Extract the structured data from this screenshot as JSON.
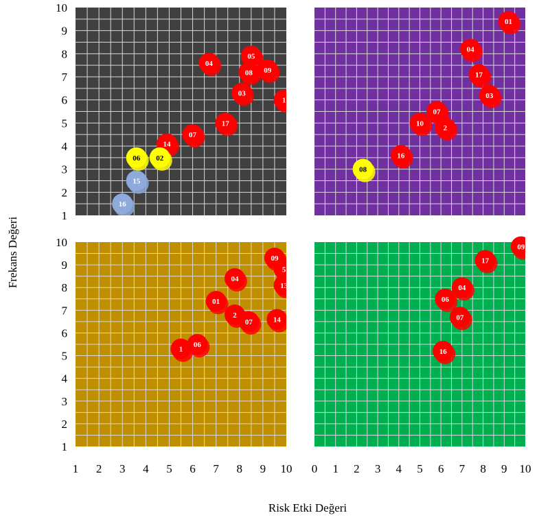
{
  "chart_data": {
    "type": "scatter",
    "xlabel": "Risk Etki Değeri",
    "ylabel": "Frekans Değeri",
    "legend": "none",
    "grid": true,
    "panels": [
      {
        "background": "#404040",
        "xlim": [
          1,
          10
        ],
        "ylim": [
          1,
          10
        ],
        "x_ticks": [
          1,
          2,
          3,
          4,
          5,
          6,
          7,
          8,
          9,
          10
        ],
        "y_ticks": [
          1,
          2,
          3,
          4,
          5,
          6,
          7,
          8,
          9,
          10
        ],
        "points": [
          {
            "label": "04",
            "x": 6.7,
            "y": 7.6,
            "color": "#ff0000"
          },
          {
            "label": "05",
            "x": 8.5,
            "y": 7.9,
            "color": "#ff0000"
          },
          {
            "label": "08",
            "x": 8.4,
            "y": 7.2,
            "color": "#ff0000"
          },
          {
            "label": "09",
            "x": 9.2,
            "y": 7.3,
            "color": "#ff0000"
          },
          {
            "label": "03",
            "x": 8.1,
            "y": 6.3,
            "color": "#ff0000"
          },
          {
            "label": "1",
            "x": 9.9,
            "y": 6.0,
            "color": "#ff0000"
          },
          {
            "label": "17",
            "x": 7.4,
            "y": 5.0,
            "color": "#ff0000"
          },
          {
            "label": "07",
            "x": 6.0,
            "y": 4.5,
            "color": "#ff0000"
          },
          {
            "label": "14",
            "x": 4.9,
            "y": 4.1,
            "color": "#ff0000"
          },
          {
            "label": "06",
            "x": 3.6,
            "y": 3.5,
            "color": "#ffff00"
          },
          {
            "label": "02",
            "x": 4.6,
            "y": 3.5,
            "color": "#ffff00"
          },
          {
            "label": "15",
            "x": 3.6,
            "y": 2.5,
            "color": "#8ea9db"
          },
          {
            "label": "16",
            "x": 3.0,
            "y": 1.5,
            "color": "#8ea9db"
          }
        ]
      },
      {
        "background": "#7030a0",
        "xlim": [
          0,
          10
        ],
        "ylim": [
          1,
          10
        ],
        "x_ticks": [],
        "y_ticks": [],
        "points": [
          {
            "label": "01",
            "x": 9.2,
            "y": 9.4,
            "color": "#ff0000"
          },
          {
            "label": "04",
            "x": 7.4,
            "y": 8.2,
            "color": "#ff0000"
          },
          {
            "label": "17",
            "x": 7.8,
            "y": 7.1,
            "color": "#ff0000"
          },
          {
            "label": "03",
            "x": 8.3,
            "y": 6.2,
            "color": "#ff0000"
          },
          {
            "label": "07",
            "x": 5.8,
            "y": 5.5,
            "color": "#ff0000"
          },
          {
            "label": "10",
            "x": 5.0,
            "y": 5.0,
            "color": "#ff0000"
          },
          {
            "label": "2",
            "x": 6.2,
            "y": 4.8,
            "color": "#ff0000"
          },
          {
            "label": "16",
            "x": 4.1,
            "y": 3.6,
            "color": "#ff0000"
          },
          {
            "label": "08",
            "x": 2.3,
            "y": 3.0,
            "color": "#ffff00"
          }
        ]
      },
      {
        "background": "#bf8f00",
        "xlim": [
          1,
          10
        ],
        "ylim": [
          1,
          10
        ],
        "x_ticks": [
          1,
          2,
          3,
          4,
          5,
          6,
          7,
          8,
          9,
          10
        ],
        "y_ticks": [
          1,
          2,
          3,
          4,
          5,
          6,
          7,
          8,
          9,
          10
        ],
        "points": [
          {
            "label": "09",
            "x": 9.5,
            "y": 9.3,
            "color": "#ff0000"
          },
          {
            "label": "5",
            "x": 9.9,
            "y": 8.8,
            "color": "#ff0000"
          },
          {
            "label": "04",
            "x": 7.8,
            "y": 8.4,
            "color": "#ff0000"
          },
          {
            "label": "13",
            "x": 9.9,
            "y": 8.1,
            "color": "#ff0000"
          },
          {
            "label": "01",
            "x": 7.0,
            "y": 7.4,
            "color": "#ff0000"
          },
          {
            "label": "2",
            "x": 7.8,
            "y": 6.8,
            "color": "#ff0000"
          },
          {
            "label": "07",
            "x": 8.4,
            "y": 6.5,
            "color": "#ff0000"
          },
          {
            "label": "14",
            "x": 9.6,
            "y": 6.6,
            "color": "#ff0000"
          },
          {
            "label": "06",
            "x": 6.2,
            "y": 5.5,
            "color": "#ff0000"
          },
          {
            "label": "1",
            "x": 5.5,
            "y": 5.3,
            "color": "#ff0000"
          }
        ]
      },
      {
        "background": "#00b050",
        "xlim": [
          0,
          10
        ],
        "ylim": [
          1,
          10
        ],
        "x_ticks": [
          0,
          1,
          2,
          3,
          4,
          5,
          6,
          7,
          8,
          9,
          10
        ],
        "y_ticks": [],
        "points": [
          {
            "label": "09",
            "x": 9.8,
            "y": 9.8,
            "color": "#ff0000"
          },
          {
            "label": "17",
            "x": 8.1,
            "y": 9.2,
            "color": "#ff0000"
          },
          {
            "label": "04",
            "x": 7.0,
            "y": 8.0,
            "color": "#ff0000"
          },
          {
            "label": "06",
            "x": 6.2,
            "y": 7.5,
            "color": "#ff0000"
          },
          {
            "label": "07",
            "x": 6.9,
            "y": 6.7,
            "color": "#ff0000"
          },
          {
            "label": "16",
            "x": 6.1,
            "y": 5.2,
            "color": "#ff0000"
          }
        ]
      }
    ]
  }
}
